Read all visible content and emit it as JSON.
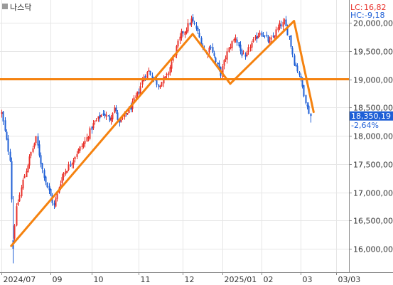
{
  "header": {
    "title": "나스닥",
    "lc_label": "LC:",
    "lc_value": "16,82",
    "hc_label": "HC:",
    "hc_value": "-9,18"
  },
  "current": {
    "price_text": "18,350,19",
    "change_text": "-2,64%",
    "price": 18350.19
  },
  "colors": {
    "up": "#e8302a",
    "down": "#1f5fd6",
    "trend": "#f5820f",
    "price_box": "#1f5fd6",
    "lc": "#e8302a",
    "hc": "#1f5fd6"
  },
  "chart_data": {
    "type": "candlestick",
    "instrument": "나스닥",
    "y_range": [
      15700,
      20250
    ],
    "y_ticks": [
      {
        "value": 16000,
        "label": "16,000,00"
      },
      {
        "value": 16500,
        "label": "16,500,00"
      },
      {
        "value": 17000,
        "label": "17,000,00"
      },
      {
        "value": 17500,
        "label": "17,500,00"
      },
      {
        "value": 18000,
        "label": "18,000,00"
      },
      {
        "value": 18500,
        "label": "18,500,00"
      },
      {
        "value": 19000,
        "label": "19,000,00"
      },
      {
        "value": 19500,
        "label": "19,500,00"
      },
      {
        "value": 20000,
        "label": "20,000,00"
      }
    ],
    "x_ticks": [
      {
        "label": "2024/07",
        "index": 0
      },
      {
        "label": "09",
        "index": 30
      },
      {
        "label": "10",
        "index": 55
      },
      {
        "label": "11",
        "index": 84
      },
      {
        "label": "12",
        "index": 111
      },
      {
        "label": "2025/01",
        "index": 135
      },
      {
        "label": "02",
        "index": 159
      },
      {
        "label": "03",
        "index": 183
      },
      {
        "label": "03/03",
        "index": 205
      }
    ],
    "anchors": [
      [
        0,
        18400
      ],
      [
        3,
        17900
      ],
      [
        5,
        17600
      ],
      [
        7,
        16200
      ],
      [
        9,
        16700
      ],
      [
        13,
        17200
      ],
      [
        18,
        17700
      ],
      [
        21,
        17950
      ],
      [
        25,
        17400
      ],
      [
        28,
        17100
      ],
      [
        32,
        16750
      ],
      [
        35,
        17100
      ],
      [
        38,
        17350
      ],
      [
        42,
        17500
      ],
      [
        46,
        17700
      ],
      [
        51,
        17900
      ],
      [
        56,
        18200
      ],
      [
        62,
        18400
      ],
      [
        66,
        18300
      ],
      [
        69,
        18500
      ],
      [
        72,
        18200
      ],
      [
        75,
        18350
      ],
      [
        79,
        18500
      ],
      [
        84,
        18800
      ],
      [
        87,
        19050
      ],
      [
        90,
        19150
      ],
      [
        93,
        19000
      ],
      [
        96,
        18900
      ],
      [
        101,
        19050
      ],
      [
        104,
        19300
      ],
      [
        107,
        19550
      ],
      [
        110,
        19800
      ],
      [
        113,
        19900
      ],
      [
        116,
        20050
      ],
      [
        119,
        19900
      ],
      [
        122,
        19650
      ],
      [
        125,
        19450
      ],
      [
        128,
        19600
      ],
      [
        131,
        19300
      ],
      [
        134,
        19100
      ],
      [
        137,
        19400
      ],
      [
        140,
        19600
      ],
      [
        143,
        19750
      ],
      [
        146,
        19500
      ],
      [
        149,
        19350
      ],
      [
        152,
        19600
      ],
      [
        155,
        19700
      ],
      [
        158,
        19850
      ],
      [
        161,
        19750
      ],
      [
        164,
        19650
      ],
      [
        167,
        19800
      ],
      [
        170,
        19950
      ],
      [
        173,
        20000
      ],
      [
        176,
        19750
      ],
      [
        179,
        19300
      ],
      [
        182,
        19100
      ],
      [
        185,
        18750
      ],
      [
        187,
        18500
      ],
      [
        189,
        18350
      ]
    ],
    "reference_line": {
      "value": 19000
    },
    "trendlines": [
      [
        [
          6,
          16050
        ],
        [
          117,
          19800
        ]
      ],
      [
        [
          117,
          19800
        ],
        [
          140,
          18920
        ]
      ],
      [
        [
          140,
          18920
        ],
        [
          179,
          20030
        ]
      ],
      [
        [
          179,
          20030
        ],
        [
          191,
          18420
        ]
      ]
    ]
  }
}
